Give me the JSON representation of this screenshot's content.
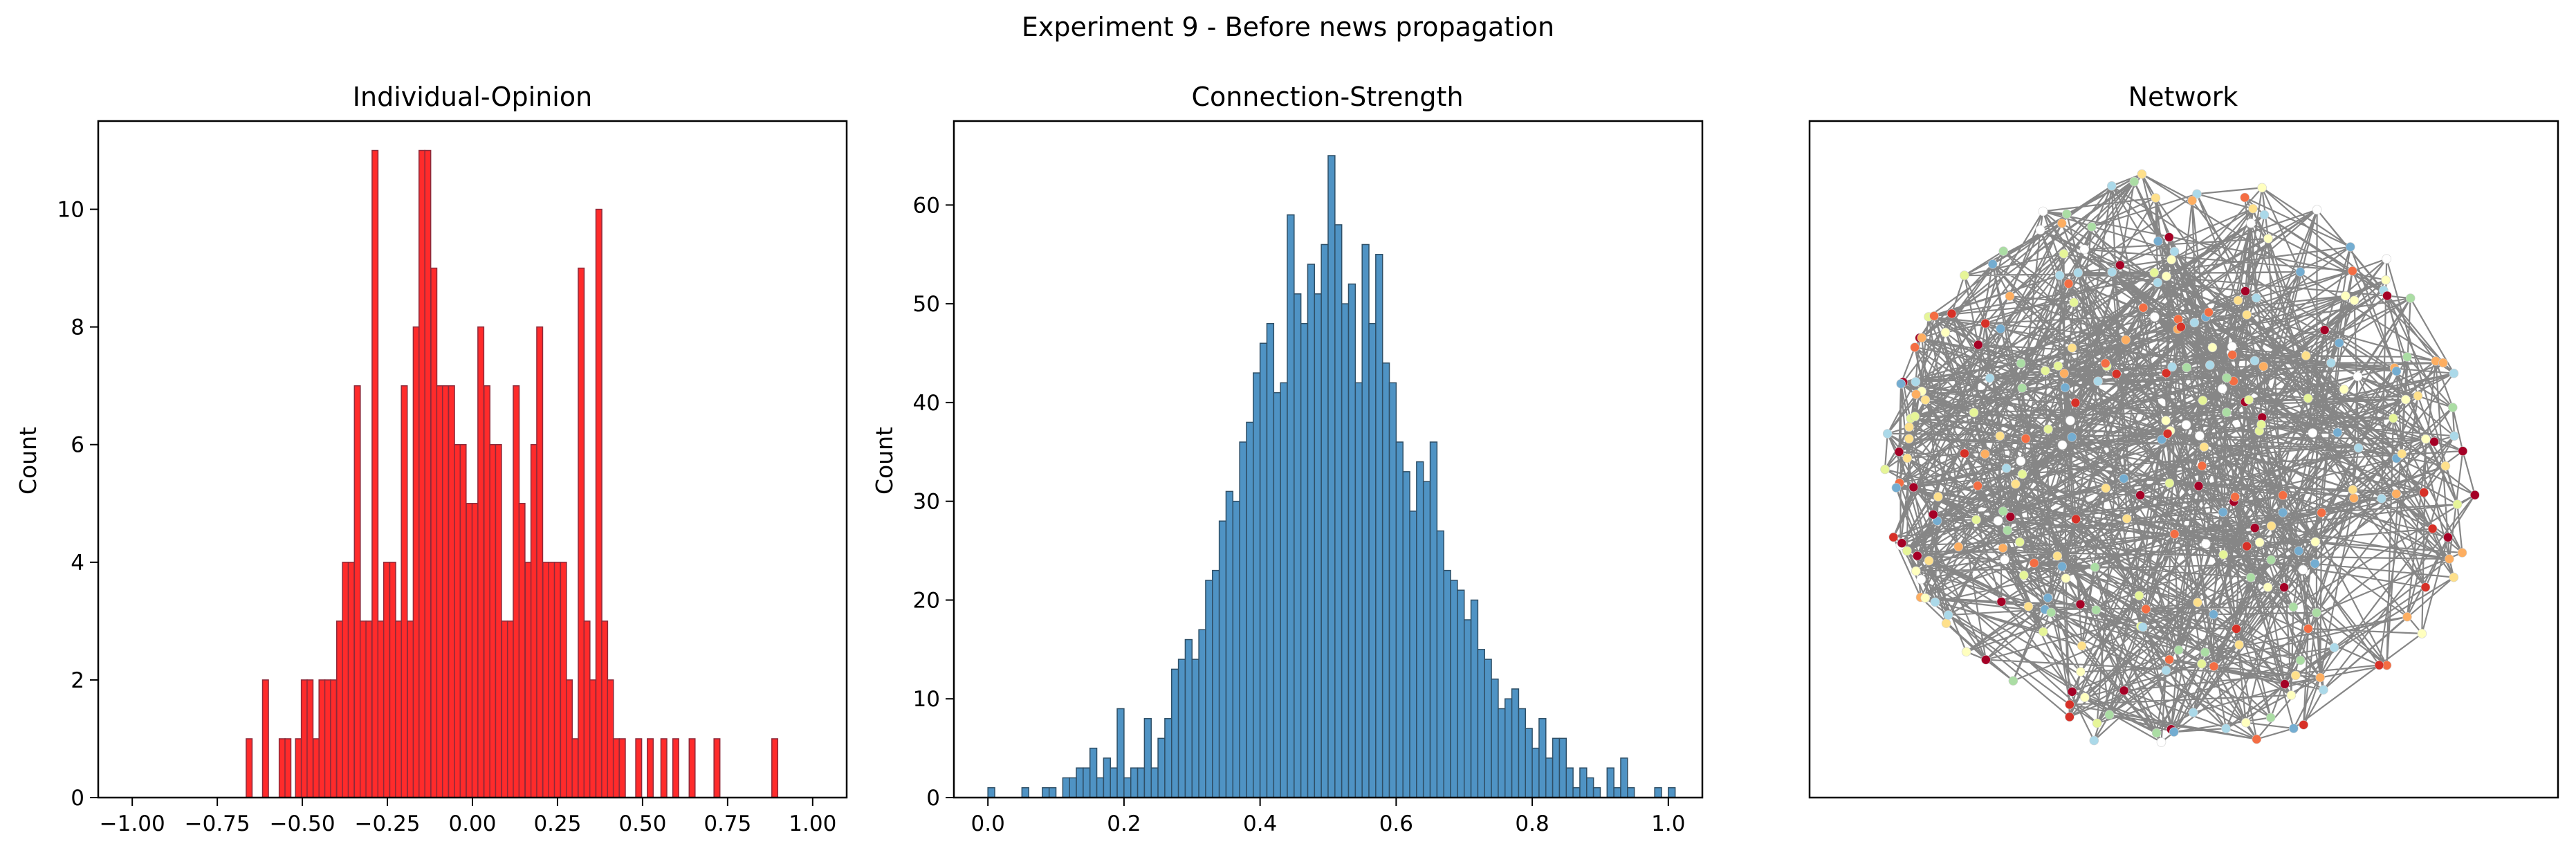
{
  "suptitle": "Experiment 9 - Before news propagation",
  "colors": {
    "opinion_fill": "#ff2b2b",
    "opinion_edge": "#8c2a3a",
    "strength_fill": "#4f93c4",
    "strength_edge": "#2f4f66",
    "edge_color": "#808080",
    "node_palette": [
      "#fee08b",
      "#ffffbf",
      "#e6f598",
      "#abdda4",
      "#abd9e9",
      "#74add1",
      "#fdae61",
      "#f46d43",
      "#d73027",
      "#a50026",
      "#ffffff"
    ]
  },
  "chart_data": [
    {
      "type": "bar",
      "title": "Individual-Opinion",
      "xlabel": "",
      "ylabel": "Count",
      "xlim": [
        -1.1,
        1.1
      ],
      "ylim": [
        0,
        11.5
      ],
      "xticks": [
        -1.0,
        -0.75,
        -0.5,
        -0.25,
        0.0,
        0.25,
        0.5,
        0.75,
        1.0
      ],
      "xtick_labels": [
        "−1.00",
        "−0.75",
        "−0.50",
        "−0.25",
        "0.00",
        "0.25",
        "0.50",
        "0.75",
        "1.00"
      ],
      "yticks": [
        0,
        2,
        4,
        6,
        8,
        10
      ],
      "ytick_labels": [
        "0",
        "2",
        "4",
        "6",
        "8",
        "10"
      ],
      "bin_width": 0.0173,
      "grid": false,
      "bins": [
        {
          "x": -0.665,
          "value": 1
        },
        {
          "x": -0.617,
          "value": 2
        },
        {
          "x": -0.568,
          "value": 1
        },
        {
          "x": -0.551,
          "value": 1
        },
        {
          "x": -0.52,
          "value": 1
        },
        {
          "x": -0.503,
          "value": 2
        },
        {
          "x": -0.486,
          "value": 2
        },
        {
          "x": -0.468,
          "value": 1
        },
        {
          "x": -0.451,
          "value": 2
        },
        {
          "x": -0.434,
          "value": 2
        },
        {
          "x": -0.417,
          "value": 2
        },
        {
          "x": -0.399,
          "value": 3
        },
        {
          "x": -0.382,
          "value": 4
        },
        {
          "x": -0.365,
          "value": 4
        },
        {
          "x": -0.347,
          "value": 7
        },
        {
          "x": -0.33,
          "value": 3
        },
        {
          "x": -0.313,
          "value": 3
        },
        {
          "x": -0.295,
          "value": 11
        },
        {
          "x": -0.278,
          "value": 3
        },
        {
          "x": -0.261,
          "value": 4
        },
        {
          "x": -0.243,
          "value": 4
        },
        {
          "x": -0.226,
          "value": 3
        },
        {
          "x": -0.209,
          "value": 7
        },
        {
          "x": -0.191,
          "value": 3
        },
        {
          "x": -0.174,
          "value": 8
        },
        {
          "x": -0.157,
          "value": 11
        },
        {
          "x": -0.14,
          "value": 11
        },
        {
          "x": -0.122,
          "value": 9
        },
        {
          "x": -0.105,
          "value": 7
        },
        {
          "x": -0.088,
          "value": 7
        },
        {
          "x": -0.07,
          "value": 7
        },
        {
          "x": -0.053,
          "value": 6
        },
        {
          "x": -0.036,
          "value": 6
        },
        {
          "x": -0.018,
          "value": 5
        },
        {
          "x": -0.001,
          "value": 5
        },
        {
          "x": 0.016,
          "value": 8
        },
        {
          "x": 0.034,
          "value": 7
        },
        {
          "x": 0.051,
          "value": 6
        },
        {
          "x": 0.068,
          "value": 6
        },
        {
          "x": 0.086,
          "value": 3
        },
        {
          "x": 0.103,
          "value": 3
        },
        {
          "x": 0.12,
          "value": 7
        },
        {
          "x": 0.137,
          "value": 5
        },
        {
          "x": 0.155,
          "value": 4
        },
        {
          "x": 0.172,
          "value": 6
        },
        {
          "x": 0.189,
          "value": 8
        },
        {
          "x": 0.207,
          "value": 4
        },
        {
          "x": 0.224,
          "value": 4
        },
        {
          "x": 0.241,
          "value": 4
        },
        {
          "x": 0.259,
          "value": 4
        },
        {
          "x": 0.276,
          "value": 2
        },
        {
          "x": 0.293,
          "value": 1
        },
        {
          "x": 0.311,
          "value": 9
        },
        {
          "x": 0.328,
          "value": 3
        },
        {
          "x": 0.345,
          "value": 2
        },
        {
          "x": 0.363,
          "value": 10
        },
        {
          "x": 0.38,
          "value": 3
        },
        {
          "x": 0.397,
          "value": 2
        },
        {
          "x": 0.414,
          "value": 1
        },
        {
          "x": 0.432,
          "value": 1
        },
        {
          "x": 0.48,
          "value": 1
        },
        {
          "x": 0.514,
          "value": 1
        },
        {
          "x": 0.554,
          "value": 1
        },
        {
          "x": 0.589,
          "value": 1
        },
        {
          "x": 0.637,
          "value": 1
        },
        {
          "x": 0.71,
          "value": 1
        },
        {
          "x": 0.88,
          "value": 1
        }
      ]
    },
    {
      "type": "bar",
      "title": "Connection-Strength",
      "xlabel": "",
      "ylabel": "Count",
      "xlim": [
        -0.05,
        1.05
      ],
      "ylim": [
        0,
        68.5
      ],
      "xticks": [
        0.0,
        0.2,
        0.4,
        0.6,
        0.8,
        1.0
      ],
      "xtick_labels": [
        "0.0",
        "0.2",
        "0.4",
        "0.6",
        "0.8",
        "1.0"
      ],
      "yticks": [
        0,
        10,
        20,
        30,
        40,
        50,
        60
      ],
      "ytick_labels": [
        "0",
        "10",
        "20",
        "30",
        "40",
        "50",
        "60"
      ],
      "bin_start": 0.0,
      "bin_width": 0.01,
      "grid": false,
      "values": [
        1,
        0,
        0,
        0,
        0,
        1,
        0,
        0,
        1,
        1,
        0,
        2,
        2,
        3,
        3,
        5,
        2,
        4,
        3,
        9,
        2,
        3,
        3,
        8,
        3,
        6,
        8,
        13,
        14,
        16,
        14,
        17,
        22,
        23,
        28,
        31,
        30,
        36,
        38,
        43,
        46,
        48,
        41,
        42,
        59,
        51,
        48,
        54,
        51,
        56,
        65,
        58,
        50,
        52,
        42,
        56,
        48,
        55,
        44,
        42,
        36,
        33,
        29,
        34,
        32,
        36,
        27,
        23,
        22,
        21,
        18,
        20,
        15,
        14,
        12,
        9,
        10,
        11,
        9,
        7,
        5,
        8,
        4,
        6,
        6,
        3,
        1,
        3,
        2,
        1,
        0,
        3,
        1,
        4,
        1,
        0,
        0,
        0,
        1,
        0,
        1
      ]
    },
    {
      "type": "network",
      "title": "Network",
      "node_count": 300,
      "axes_visible": false
    }
  ]
}
